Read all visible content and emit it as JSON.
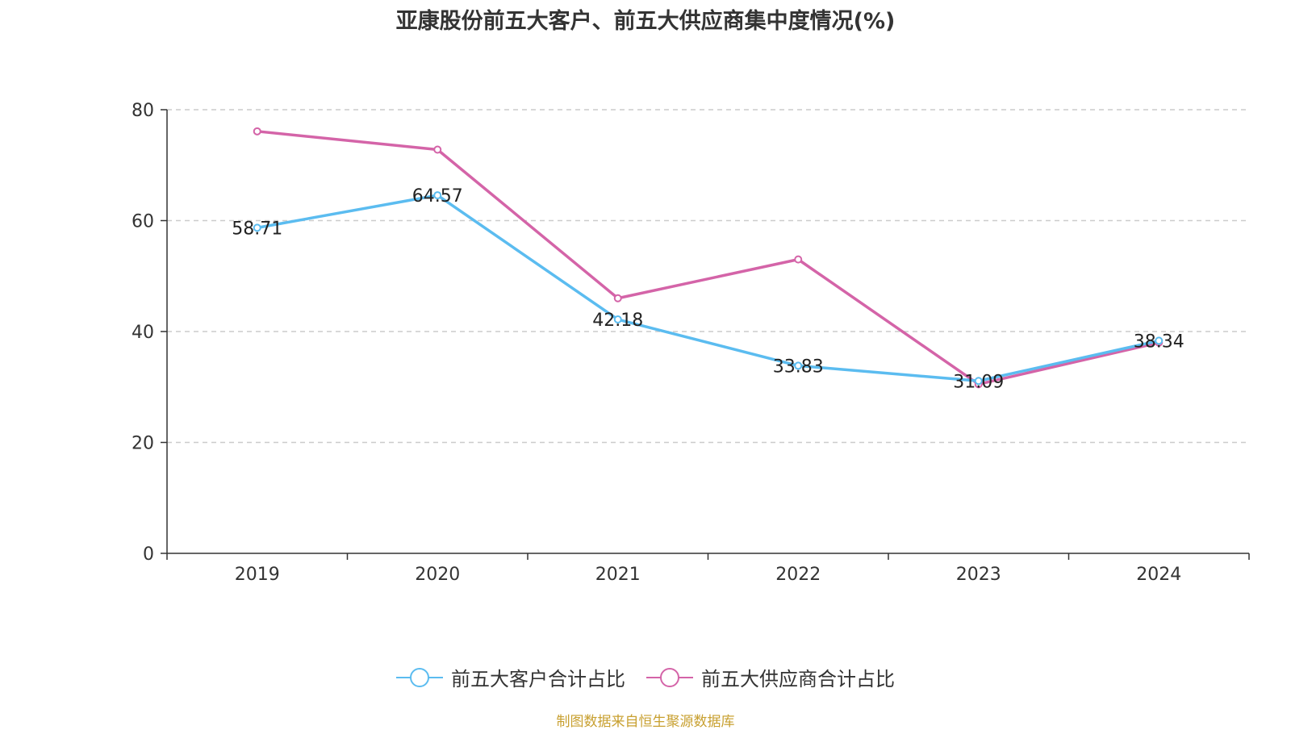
{
  "chart_data": {
    "type": "line",
    "title": "亚康股份前五大客户、前五大供应商集中度情况(%)",
    "categories": [
      "2019",
      "2020",
      "2021",
      "2022",
      "2023",
      "2024"
    ],
    "ylim": [
      0,
      80
    ],
    "yticks": [
      0,
      20,
      40,
      60,
      80
    ],
    "grid": true,
    "legend_position": "bottom",
    "series": [
      {
        "name": "前五大客户合计占比",
        "color": "#5bbcf0",
        "values": [
          58.71,
          64.57,
          42.18,
          33.83,
          31.09,
          38.34
        ],
        "labels": [
          "58.71",
          "64.57",
          "42.18",
          "33.83",
          "31.09",
          "38.34"
        ]
      },
      {
        "name": "前五大供应商合计占比",
        "color": "#d464a8",
        "values": [
          76.1,
          72.8,
          46.0,
          53.0,
          30.5,
          38.0
        ]
      }
    ]
  },
  "source_note": "制图数据来自恒生聚源数据库"
}
